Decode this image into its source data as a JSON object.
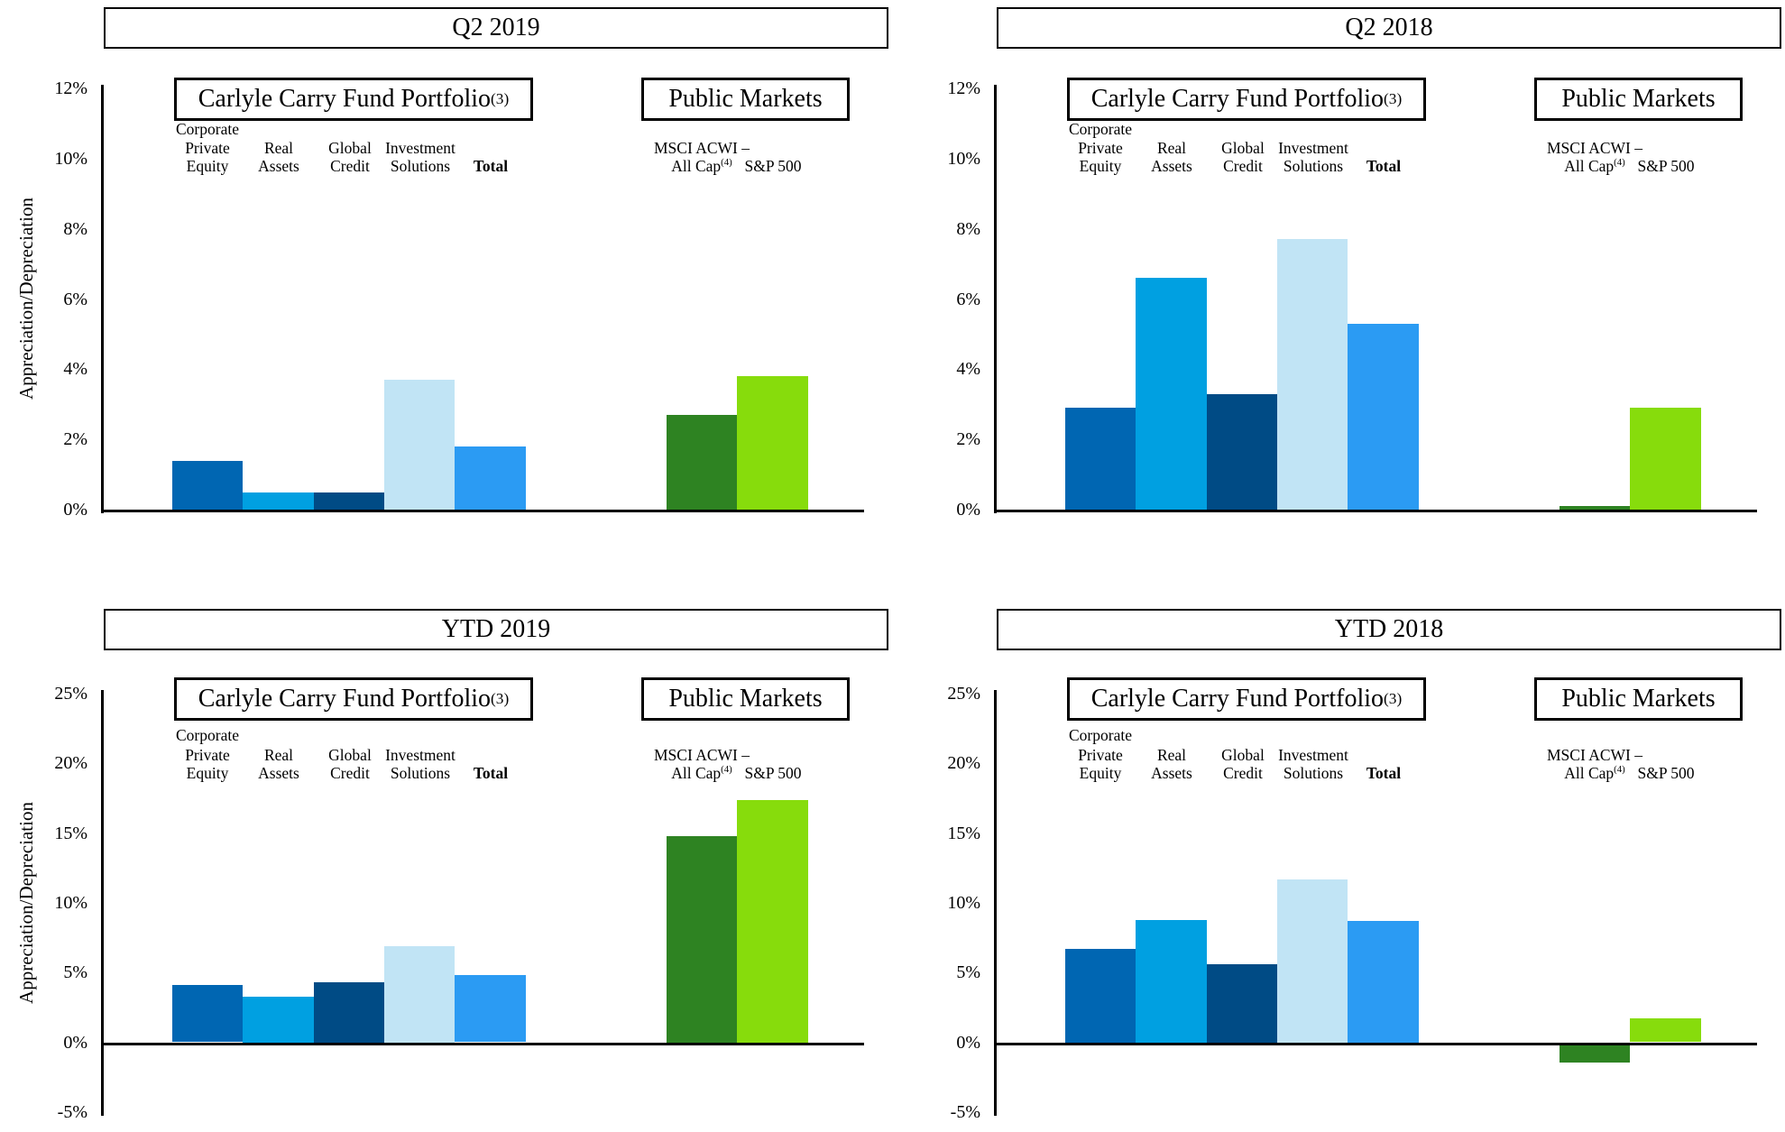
{
  "page": {
    "ylabel": "Appreciation/Depreciation"
  },
  "labels": {
    "carry_box": {
      "text": "Carlyle Carry Fund Portfolio",
      "sup": "(3)"
    },
    "public_box": {
      "text": "Public Markets"
    },
    "carry_columns": [
      {
        "lines": [
          "Corporate",
          "Private",
          "Equity"
        ],
        "bold": false
      },
      {
        "lines": [
          "",
          "Real",
          "Assets"
        ],
        "bold": false
      },
      {
        "lines": [
          "",
          "Global",
          "Credit"
        ],
        "bold": false
      },
      {
        "lines": [
          "",
          "Investment",
          "Solutions"
        ],
        "bold": false
      },
      {
        "lines": [
          "",
          "",
          "Total"
        ],
        "bold": true
      }
    ],
    "public_columns": [
      {
        "lines": [
          "",
          "MSCI ACWI –",
          "All Cap"
        ],
        "sup": "(4)",
        "bold": false
      },
      {
        "lines": [
          "",
          "",
          "S&P 500"
        ],
        "bold": false
      }
    ]
  },
  "colors": {
    "corporate_private_equity": "#0066b2",
    "real_assets": "#00a0e1",
    "global_credit": "#004b85",
    "investment_solutions": "#c1e4f5",
    "total": "#2b9bf3",
    "msci_acwi_all_cap": "#2e8322",
    "sp_500": "#87dc0c"
  },
  "chart_data": [
    {
      "type": "bar",
      "id": "q2-2019",
      "title": "Q2 2019",
      "categories": [
        "Corporate Private Equity",
        "Real Assets",
        "Global Credit",
        "Investment Solutions",
        "Total",
        "MSCI ACWI – All Cap(4)",
        "S&P 500"
      ],
      "values": [
        1.4,
        0.5,
        0.5,
        3.7,
        1.8,
        2.7,
        3.8
      ],
      "ylabel": "Appreciation/Depreciation",
      "ylim": [
        0,
        12
      ],
      "ytick_step": 2,
      "yticks": [
        "12%",
        "10%",
        "8%",
        "6%",
        "4%",
        "2%",
        "0%"
      ],
      "grid": false,
      "legend": false,
      "groups": {
        "carry": "Carlyle Carry Fund Portfolio(3)",
        "public": "Public Markets"
      }
    },
    {
      "type": "bar",
      "id": "q2-2018",
      "title": "Q2 2018",
      "categories": [
        "Corporate Private Equity",
        "Real Assets",
        "Global Credit",
        "Investment Solutions",
        "Total",
        "MSCI ACWI – All Cap(4)",
        "S&P 500"
      ],
      "values": [
        2.9,
        6.6,
        3.3,
        7.7,
        5.3,
        0.1,
        2.9
      ],
      "ylabel": "",
      "ylim": [
        0,
        12
      ],
      "ytick_step": 2,
      "yticks": [
        "12%",
        "10%",
        "8%",
        "6%",
        "4%",
        "2%",
        "0%"
      ],
      "grid": false,
      "legend": false,
      "groups": {
        "carry": "Carlyle Carry Fund Portfolio(3)",
        "public": "Public Markets"
      }
    },
    {
      "type": "bar",
      "id": "ytd-2019",
      "title": "YTD 2019",
      "categories": [
        "Corporate Private Equity",
        "Real Assets",
        "Global Credit",
        "Investment Solutions",
        "Total",
        "MSCI ACWI – All Cap(4)",
        "S&P 500"
      ],
      "values": [
        4.1,
        3.3,
        4.3,
        6.9,
        4.8,
        14.8,
        17.4
      ],
      "ylabel": "Appreciation/Depreciation",
      "ylim": [
        -5,
        25
      ],
      "ytick_step": 5,
      "yticks": [
        "25%",
        "20%",
        "15%",
        "10%",
        "5%",
        "0%",
        "-5%"
      ],
      "grid": false,
      "legend": false,
      "groups": {
        "carry": "Carlyle Carry Fund Portfolio(3)",
        "public": "Public Markets"
      }
    },
    {
      "type": "bar",
      "id": "ytd-2018",
      "title": "YTD 2018",
      "categories": [
        "Corporate Private Equity",
        "Real Assets",
        "Global Credit",
        "Investment Solutions",
        "Total",
        "MSCI ACWI – All Cap(4)",
        "S&P 500"
      ],
      "values": [
        6.7,
        8.8,
        5.6,
        11.7,
        8.7,
        -1.2,
        1.7
      ],
      "ylabel": "",
      "ylim": [
        -5,
        25
      ],
      "ytick_step": 5,
      "yticks": [
        "25%",
        "20%",
        "15%",
        "10%",
        "5%",
        "0%",
        "-5%"
      ],
      "grid": false,
      "legend": false,
      "groups": {
        "carry": "Carlyle Carry Fund Portfolio(3)",
        "public": "Public Markets"
      }
    }
  ]
}
